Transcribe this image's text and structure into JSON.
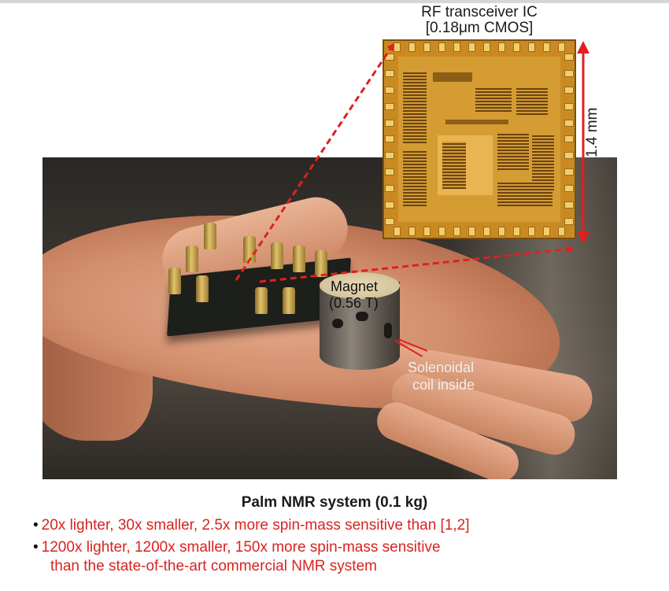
{
  "chip": {
    "title": "RF transceiver IC",
    "process": "[0.18μm CMOS]",
    "dimension": "1.4 mm"
  },
  "photo": {
    "magnet_label_line1": "Magnet",
    "magnet_label_line2": "(0.56 T)",
    "coil_label_line1": "Solenoidal",
    "coil_label_line2": "coil inside"
  },
  "caption": "Palm NMR system (0.1 kg)",
  "bullets": [
    "20x lighter, 30x smaller, 2.5x more spin-mass sensitive than [1,2]",
    "1200x lighter, 1200x smaller, 150x more spin-mass sensitive",
    "than the state-of-the-art commercial NMR system"
  ],
  "colors": {
    "accent_red": "#d8231f",
    "chip_gold": "#c98a22"
  }
}
